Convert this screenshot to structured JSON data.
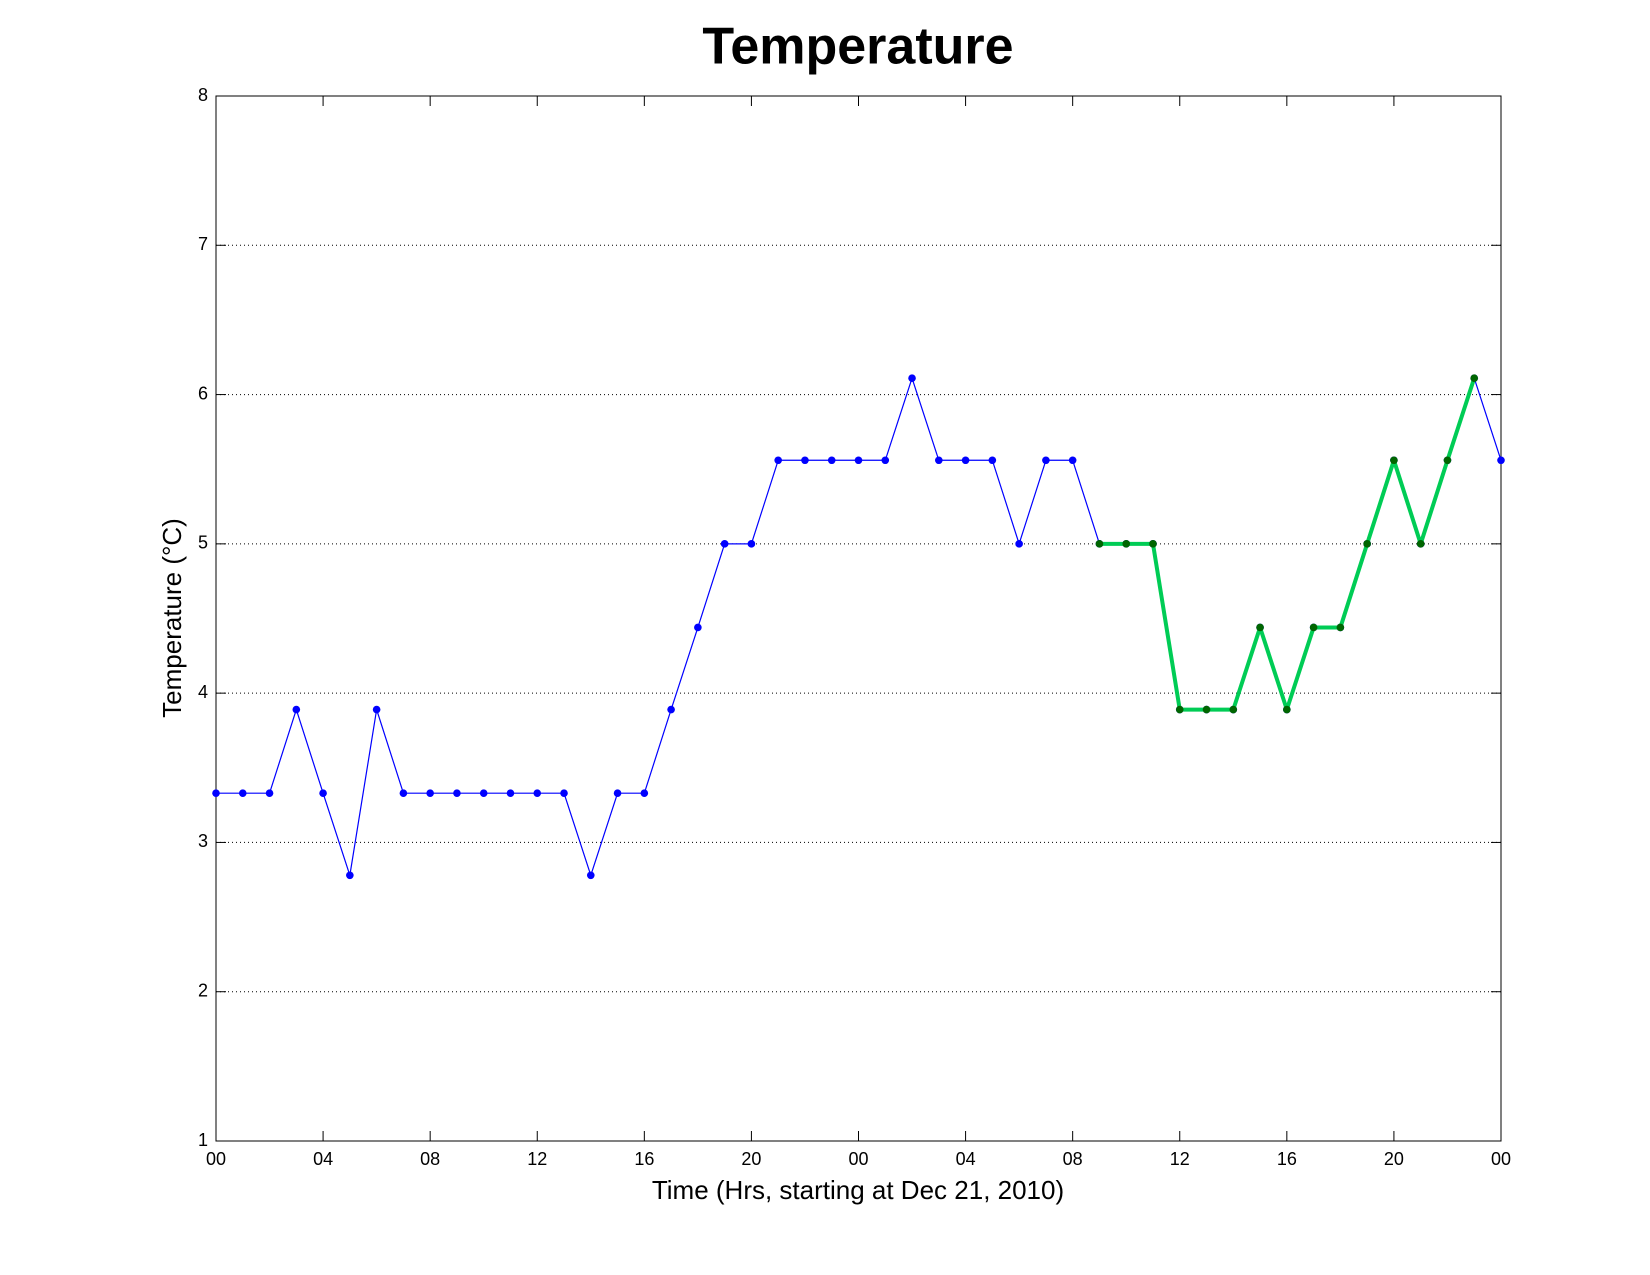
{
  "chart_data": {
    "type": "line",
    "title": "Temperature",
    "xlabel": "Time (Hrs, starting at Dec 21, 2010)",
    "ylabel": "Temperature (°C)",
    "xlim": [
      0,
      48
    ],
    "ylim": [
      1,
      8
    ],
    "xticks": [
      {
        "value": 0,
        "label": "00"
      },
      {
        "value": 4,
        "label": "04"
      },
      {
        "value": 8,
        "label": "08"
      },
      {
        "value": 12,
        "label": "12"
      },
      {
        "value": 16,
        "label": "16"
      },
      {
        "value": 20,
        "label": "20"
      },
      {
        "value": 24,
        "label": "00"
      },
      {
        "value": 28,
        "label": "04"
      },
      {
        "value": 32,
        "label": "08"
      },
      {
        "value": 36,
        "label": "12"
      },
      {
        "value": 40,
        "label": "16"
      },
      {
        "value": 44,
        "label": "20"
      },
      {
        "value": 48,
        "label": "00"
      }
    ],
    "yticks": [
      1,
      2,
      3,
      4,
      5,
      6,
      7,
      8
    ],
    "grid": true,
    "series": [
      {
        "color": "#0000ff",
        "marker_color": "#0000ff",
        "line_width": 1.2,
        "x": [
          0,
          1,
          2,
          3,
          4,
          5,
          6,
          7,
          8,
          9,
          10,
          11,
          12,
          13,
          14,
          15,
          16,
          17,
          18,
          19,
          20,
          21,
          22,
          23,
          24,
          25,
          26,
          27,
          28,
          29,
          30,
          31,
          32,
          33,
          34,
          35,
          36,
          37,
          38,
          39,
          40,
          41,
          42,
          43,
          44,
          45,
          46,
          47,
          48
        ],
        "values": [
          3.33,
          3.33,
          3.33,
          3.89,
          3.33,
          2.78,
          3.89,
          3.33,
          3.33,
          3.33,
          3.33,
          3.33,
          3.33,
          3.33,
          2.78,
          3.33,
          3.33,
          3.89,
          4.44,
          5,
          5,
          5.56,
          5.56,
          5.56,
          5.56,
          5.56,
          6.11,
          5.56,
          5.56,
          5.56,
          5,
          5.56,
          5.56,
          5,
          5,
          5,
          3.89,
          3.89,
          3.89,
          4.44,
          3.89,
          4.44,
          4.44,
          5,
          5.56,
          5,
          5.56,
          6.11,
          5.56
        ]
      },
      {
        "color": "#00cc55",
        "marker_color": "#006600",
        "line_width": 4,
        "x": [
          33,
          34,
          35,
          36,
          37,
          38,
          39,
          40,
          41,
          42,
          43,
          44,
          45,
          46,
          47
        ],
        "values": [
          5,
          5,
          5,
          3.89,
          3.89,
          3.89,
          4.44,
          3.89,
          4.44,
          4.44,
          5,
          5.56,
          5,
          5.56,
          6.11
        ]
      }
    ]
  }
}
